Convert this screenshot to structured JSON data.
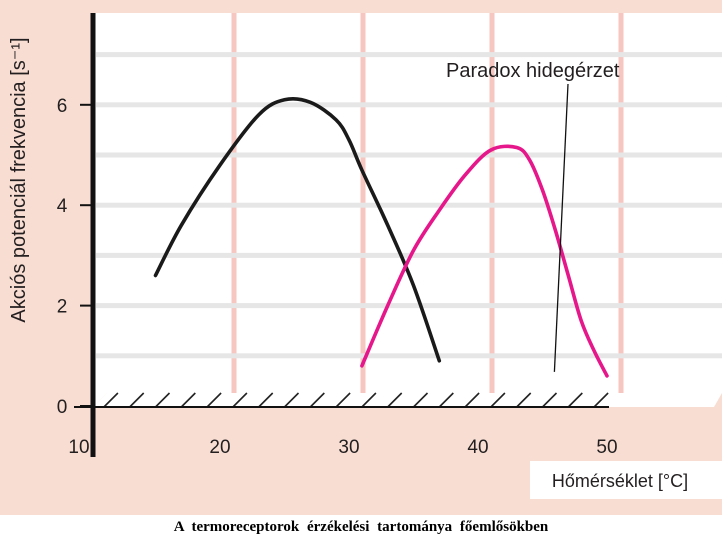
{
  "caption": "A termoreceptorok érzékelési tartománya főemlősökben",
  "colors": {
    "background": "#f8ddd2",
    "plot_area": "#ffffff",
    "h_grid": "#e6e6e6",
    "v_grid": "#f6c6c0",
    "axis": "#111111",
    "curve_black": "#1a1a1a",
    "curve_magenta": "#e5178b"
  },
  "chart_data": {
    "type": "line",
    "title": "",
    "xlabel": "Hőmérséklet [°C]",
    "ylabel": "Akciós potenciál frekvencia [s⁻¹]",
    "xlim": [
      10,
      55
    ],
    "ylim": [
      0,
      7
    ],
    "x_ticks": [
      10,
      20,
      30,
      40,
      50
    ],
    "y_ticks": [
      0,
      2,
      4,
      6
    ],
    "grid": true,
    "legend": "none",
    "series": [
      {
        "color": "#1a1a1a",
        "points": [
          [
            15,
            2.6
          ],
          [
            17,
            3.6
          ],
          [
            20,
            4.8
          ],
          [
            23,
            5.8
          ],
          [
            25,
            6.1
          ],
          [
            27,
            6.05
          ],
          [
            29,
            5.7
          ],
          [
            30,
            5.3
          ],
          [
            31,
            4.7
          ],
          [
            33,
            3.6
          ],
          [
            35,
            2.4
          ],
          [
            37,
            0.9
          ]
        ]
      },
      {
        "color": "#e5178b",
        "points": [
          [
            31,
            0.8
          ],
          [
            33,
            2.0
          ],
          [
            35,
            3.1
          ],
          [
            37,
            3.9
          ],
          [
            39,
            4.6
          ],
          [
            41,
            5.1
          ],
          [
            43,
            5.15
          ],
          [
            44,
            4.9
          ],
          [
            45,
            4.3
          ],
          [
            46,
            3.5
          ],
          [
            47,
            2.6
          ],
          [
            48,
            1.7
          ],
          [
            49,
            1.1
          ],
          [
            50,
            0.6
          ]
        ]
      }
    ],
    "annotations": [
      {
        "text": "Paradox hidegérzet",
        "points_to": [
          46,
          0.6
        ]
      }
    ]
  }
}
